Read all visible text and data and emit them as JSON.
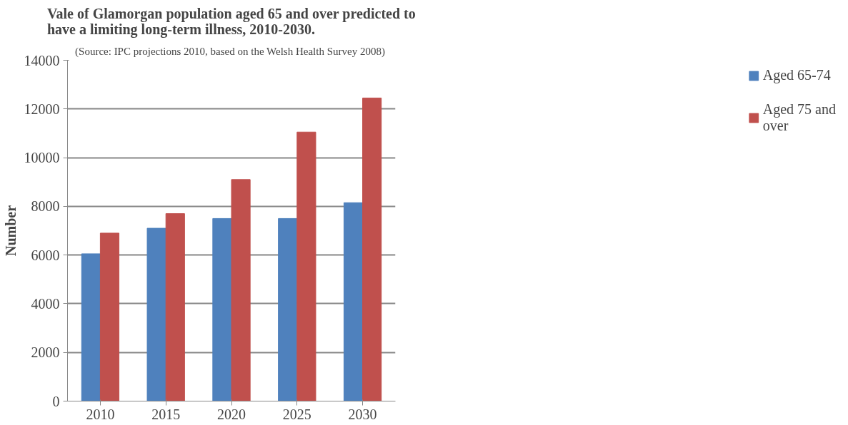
{
  "chart_data": {
    "type": "bar",
    "title": "Vale of Glamorgan population aged 65 and over predicted to\nhave a limiting long-term illness, 2010-2030.",
    "annotations": [
      "(Source: IPC projections 2010,  based on the Welsh Health Survey 2008)"
    ],
    "ylabel": "Number",
    "categories": [
      "2010",
      "2015",
      "2020",
      "2025",
      "2030"
    ],
    "series": [
      {
        "name": "Aged 65-74",
        "color": "#4f81bd",
        "values": [
          6050,
          7100,
          7500,
          7500,
          8150
        ]
      },
      {
        "name": "Aged 75 and\nover",
        "color": "#c0504d",
        "values": [
          6900,
          7700,
          9100,
          11050,
          12450
        ]
      }
    ],
    "ylim": [
      0,
      14000
    ],
    "yticks": [
      0,
      2000,
      4000,
      6000,
      8000,
      10000,
      12000,
      14000
    ],
    "grid": "y",
    "legend": "right"
  }
}
